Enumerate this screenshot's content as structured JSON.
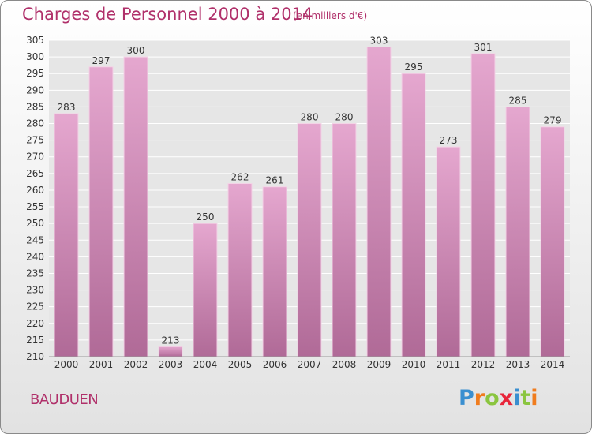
{
  "title": "Charges de Personnel 2000 à 2014",
  "subtitle": "(en milliers d'€)",
  "commune": "BAUDUEN",
  "logo": {
    "text": "Proxiti",
    "letters": [
      "P",
      "r",
      "o",
      "x",
      "i",
      "t",
      "i"
    ],
    "colors": [
      "#3a8fd0",
      "#f07c1e",
      "#8ac53f",
      "#e8253a",
      "#3a8fd0",
      "#8ac53f",
      "#f07c1e"
    ]
  },
  "colors": {
    "bar_top": "#e5a7cf",
    "bar_bottom": "#b06a97",
    "accent": "#b0306a",
    "grid": "#ffffff",
    "plot_bg": "#e6e6e6"
  },
  "chart_data": {
    "type": "bar",
    "title": "Charges de Personnel 2000 à 2014",
    "subtitle": "(en milliers d'€)",
    "categories": [
      "2000",
      "2001",
      "2002",
      "2003",
      "2004",
      "2005",
      "2006",
      "2007",
      "2008",
      "2009",
      "2010",
      "2011",
      "2012",
      "2013",
      "2014"
    ],
    "values": [
      283,
      297,
      300,
      213,
      250,
      262,
      261,
      280,
      280,
      303,
      295,
      273,
      301,
      285,
      279
    ],
    "ylim": [
      210,
      305
    ],
    "yticks": [
      210,
      215,
      220,
      225,
      230,
      235,
      240,
      245,
      250,
      255,
      260,
      265,
      270,
      275,
      280,
      285,
      290,
      295,
      300,
      305
    ],
    "grid": true
  }
}
